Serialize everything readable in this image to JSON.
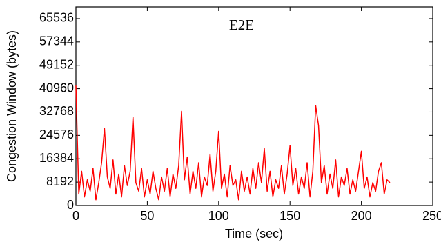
{
  "chart_data": {
    "type": "line",
    "title": "E2E",
    "xlabel": "Time (sec)",
    "ylabel": "Congestion Window (bytes)",
    "xlim": [
      0,
      250
    ],
    "xticks": [
      0,
      50,
      100,
      150,
      200,
      250
    ],
    "ylim": [
      0,
      69632
    ],
    "yticks": [
      0,
      8192,
      16384,
      24576,
      32768,
      40960,
      49152,
      57344,
      65536
    ],
    "grid": false,
    "x": [
      0,
      2,
      4,
      6,
      8,
      10,
      12,
      14,
      16,
      18,
      20,
      22,
      24,
      26,
      28,
      30,
      32,
      34,
      36,
      38,
      40,
      42,
      44,
      46,
      48,
      50,
      52,
      54,
      56,
      58,
      60,
      62,
      64,
      66,
      68,
      70,
      72,
      74,
      76,
      78,
      80,
      82,
      84,
      86,
      88,
      90,
      92,
      94,
      96,
      98,
      100,
      102,
      104,
      106,
      108,
      110,
      112,
      114,
      116,
      118,
      120,
      122,
      124,
      126,
      128,
      130,
      132,
      134,
      136,
      138,
      140,
      142,
      144,
      146,
      148,
      150,
      152,
      154,
      156,
      158,
      160,
      162,
      164,
      166,
      168,
      170,
      172,
      174,
      176,
      178,
      180,
      182,
      184,
      186,
      188,
      190,
      192,
      194,
      196,
      198,
      200,
      202,
      204,
      206,
      208,
      210,
      212,
      214,
      216,
      218,
      220
    ],
    "series": [
      {
        "name": "E2E",
        "color": "#ff0000",
        "values": [
          42000,
          4000,
          12000,
          3000,
          9000,
          5000,
          13000,
          2000,
          8000,
          15000,
          27000,
          10000,
          6000,
          16000,
          4000,
          11000,
          3000,
          14000,
          7000,
          12000,
          31000,
          8000,
          5000,
          13000,
          3000,
          9000,
          4000,
          12000,
          6000,
          2000,
          10000,
          5000,
          13000,
          3000,
          11000,
          6000,
          14000,
          33000,
          9000,
          17000,
          4000,
          12000,
          6000,
          15000,
          3000,
          10000,
          7000,
          18000,
          5000,
          12000,
          26000,
          6000,
          11000,
          3000,
          14000,
          7000,
          9000,
          2000,
          12000,
          5000,
          10000,
          4000,
          13000,
          6000,
          15000,
          8000,
          20000,
          5000,
          12000,
          3000,
          9000,
          6000,
          14000,
          4000,
          11000,
          21000,
          7000,
          13000,
          4000,
          10000,
          6000,
          15000,
          3000,
          12000,
          35000,
          28000,
          8000,
          14000,
          4000,
          11000,
          6000,
          16000,
          3000,
          10000,
          7000,
          13000,
          4000,
          9000,
          5000,
          12000,
          19000,
          6000,
          10000,
          3000,
          8000,
          5000,
          12000,
          15000,
          4000,
          9000,
          8000
        ]
      }
    ]
  }
}
